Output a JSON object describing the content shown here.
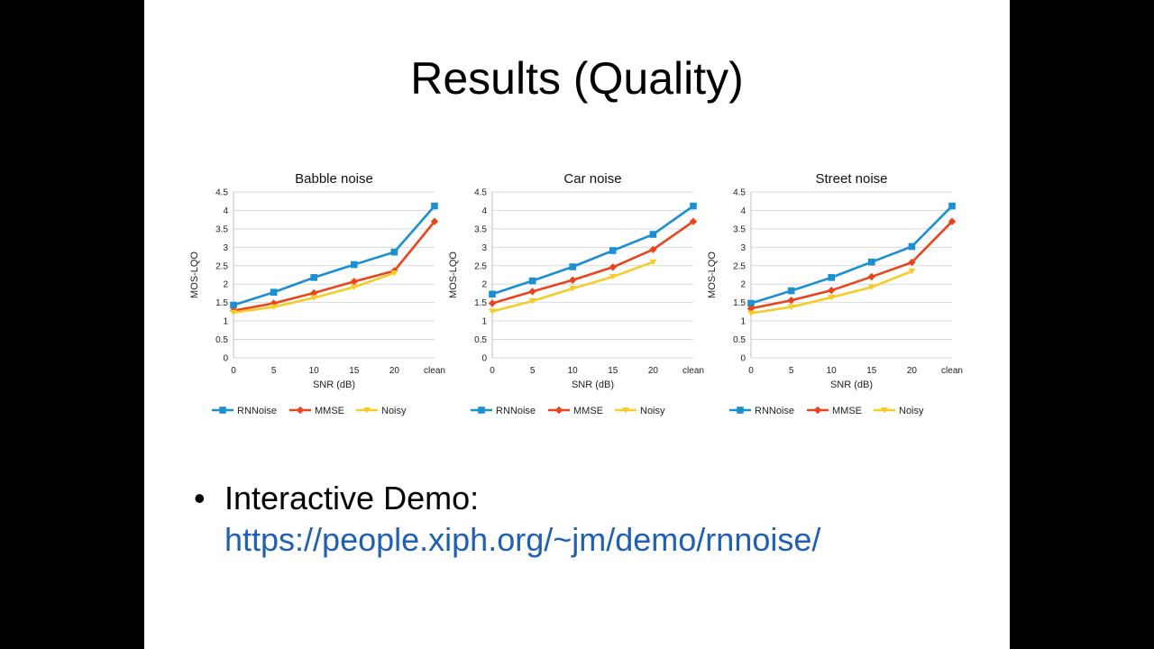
{
  "slide": {
    "title": "Results (Quality)",
    "bullet": "•",
    "demo_label": "Interactive Demo:",
    "demo_url": "https://people.xiph.org/~jm/demo/rnnoise/"
  },
  "colors": {
    "rnnoise": "#1b8fd2",
    "mmse": "#e8451f",
    "noisy": "#f5cc2a",
    "link": "#1f5fb4"
  },
  "chart_data": [
    {
      "type": "line",
      "title": "Babble noise",
      "xlabel": "SNR (dB)",
      "ylabel": "MOS-LQO",
      "categories": [
        "0",
        "5",
        "10",
        "15",
        "20",
        "clean"
      ],
      "yticks": [
        "0",
        "0.5",
        "1",
        "1.5",
        "2",
        "2.5",
        "3",
        "3.5",
        "4",
        "4.5"
      ],
      "ylim": [
        0,
        4.5
      ],
      "grid": true,
      "legend": "bottom",
      "series": [
        {
          "name": "RNNoise",
          "marker": "square",
          "values": [
            1.43,
            1.78,
            2.18,
            2.53,
            2.87,
            4.12
          ]
        },
        {
          "name": "MMSE",
          "marker": "diamond",
          "values": [
            1.28,
            1.48,
            1.76,
            2.07,
            2.36,
            3.7
          ]
        },
        {
          "name": "Noisy",
          "marker": "triangle",
          "values": [
            1.23,
            1.38,
            1.63,
            1.92,
            2.3,
            null
          ]
        }
      ]
    },
    {
      "type": "line",
      "title": "Car noise",
      "xlabel": "SNR (dB)",
      "ylabel": "MOS-LQO",
      "categories": [
        "0",
        "5",
        "10",
        "15",
        "20",
        "clean"
      ],
      "yticks": [
        "0",
        "0.5",
        "1",
        "1.5",
        "2",
        "2.5",
        "3",
        "3.5",
        "4",
        "4.5"
      ],
      "ylim": [
        0,
        4.5
      ],
      "grid": true,
      "legend": "bottom",
      "series": [
        {
          "name": "RNNoise",
          "marker": "square",
          "values": [
            1.73,
            2.09,
            2.47,
            2.91,
            3.35,
            4.12
          ]
        },
        {
          "name": "MMSE",
          "marker": "diamond",
          "values": [
            1.48,
            1.8,
            2.11,
            2.46,
            2.94,
            3.7
          ]
        },
        {
          "name": "Noisy",
          "marker": "triangle",
          "values": [
            1.26,
            1.54,
            1.88,
            2.2,
            2.6,
            null
          ]
        }
      ]
    },
    {
      "type": "line",
      "title": "Street noise",
      "xlabel": "SNR (dB)",
      "ylabel": "MOS-LQO",
      "categories": [
        "0",
        "5",
        "10",
        "15",
        "20",
        "clean"
      ],
      "yticks": [
        "0",
        "0.5",
        "1",
        "1.5",
        "2",
        "2.5",
        "3",
        "3.5",
        "4",
        "4.5"
      ],
      "ylim": [
        0,
        4.5
      ],
      "grid": true,
      "legend": "bottom",
      "series": [
        {
          "name": "RNNoise",
          "marker": "square",
          "values": [
            1.48,
            1.82,
            2.18,
            2.6,
            3.02,
            4.12
          ]
        },
        {
          "name": "MMSE",
          "marker": "diamond",
          "values": [
            1.34,
            1.56,
            1.83,
            2.2,
            2.59,
            3.7
          ]
        },
        {
          "name": "Noisy",
          "marker": "triangle",
          "values": [
            1.21,
            1.38,
            1.64,
            1.92,
            2.35,
            null
          ]
        }
      ]
    }
  ]
}
